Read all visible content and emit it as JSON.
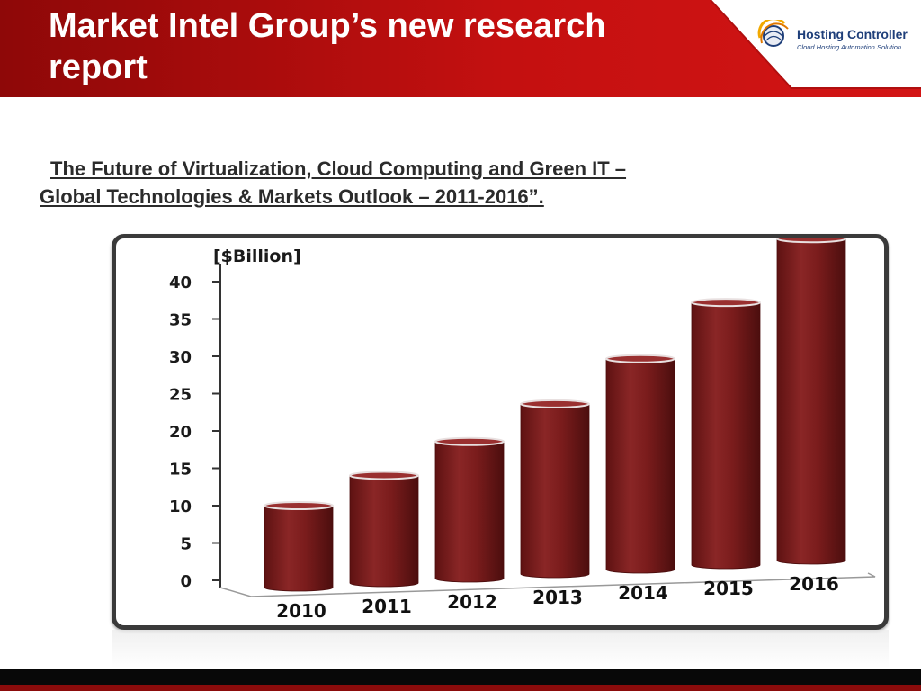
{
  "header": {
    "title": "Market Intel Group’s new research report",
    "colors": {
      "banner_dark": "#8e0808",
      "banner_light": "#d31515"
    }
  },
  "logo": {
    "name": "Hosting Controller",
    "tagline": "Cloud Hosting Automation Solution",
    "icon": "globe-arc-icon"
  },
  "subtitle": {
    "line1": "The Future of Virtualization, Cloud Computing and Green IT –",
    "line2": "Global Technologies & Markets Outlook – 2011-2016",
    "closing": "”."
  },
  "chart_data": {
    "type": "bar",
    "style": "3d-cylinder",
    "ylabel": "[$Billion]",
    "xlabel": "",
    "ylim": [
      0,
      40
    ],
    "yticks": [
      0,
      5,
      10,
      15,
      20,
      25,
      30,
      35,
      40
    ],
    "categories": [
      "2010",
      "2011",
      "2012",
      "2013",
      "2014",
      "2015",
      "2016"
    ],
    "values": [
      10,
      13.5,
      17.5,
      22,
      27.5,
      34.5,
      42.5
    ],
    "bar_color": "#7a1c1c",
    "grid": false
  }
}
